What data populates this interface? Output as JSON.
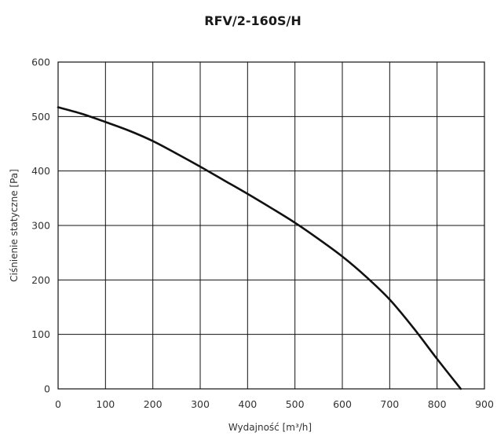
{
  "chart_data": {
    "type": "line",
    "title": "RFV/2-160S/H",
    "xlabel": "Wydajność [m³/h]",
    "ylabel": "Ciśnienie statyczne [Pa]",
    "xlim": [
      0,
      900
    ],
    "ylim": [
      0,
      600
    ],
    "xticks": [
      "0",
      "100",
      "200",
      "300",
      "400",
      "500",
      "600",
      "700",
      "800",
      "900"
    ],
    "yticks": [
      "0",
      "100",
      "200",
      "300",
      "400",
      "500",
      "600"
    ],
    "grid": true,
    "series": [
      {
        "x": [
          0,
          50,
          100,
          150,
          200,
          250,
          300,
          350,
          400,
          450,
          500,
          550,
          600,
          650,
          700,
          750,
          800,
          850
        ],
        "y": [
          517,
          505,
          490,
          474,
          455,
          432,
          408,
          383,
          358,
          332,
          305,
          275,
          243,
          206,
          164,
          112,
          55,
          0
        ]
      }
    ],
    "color": "#111111"
  }
}
